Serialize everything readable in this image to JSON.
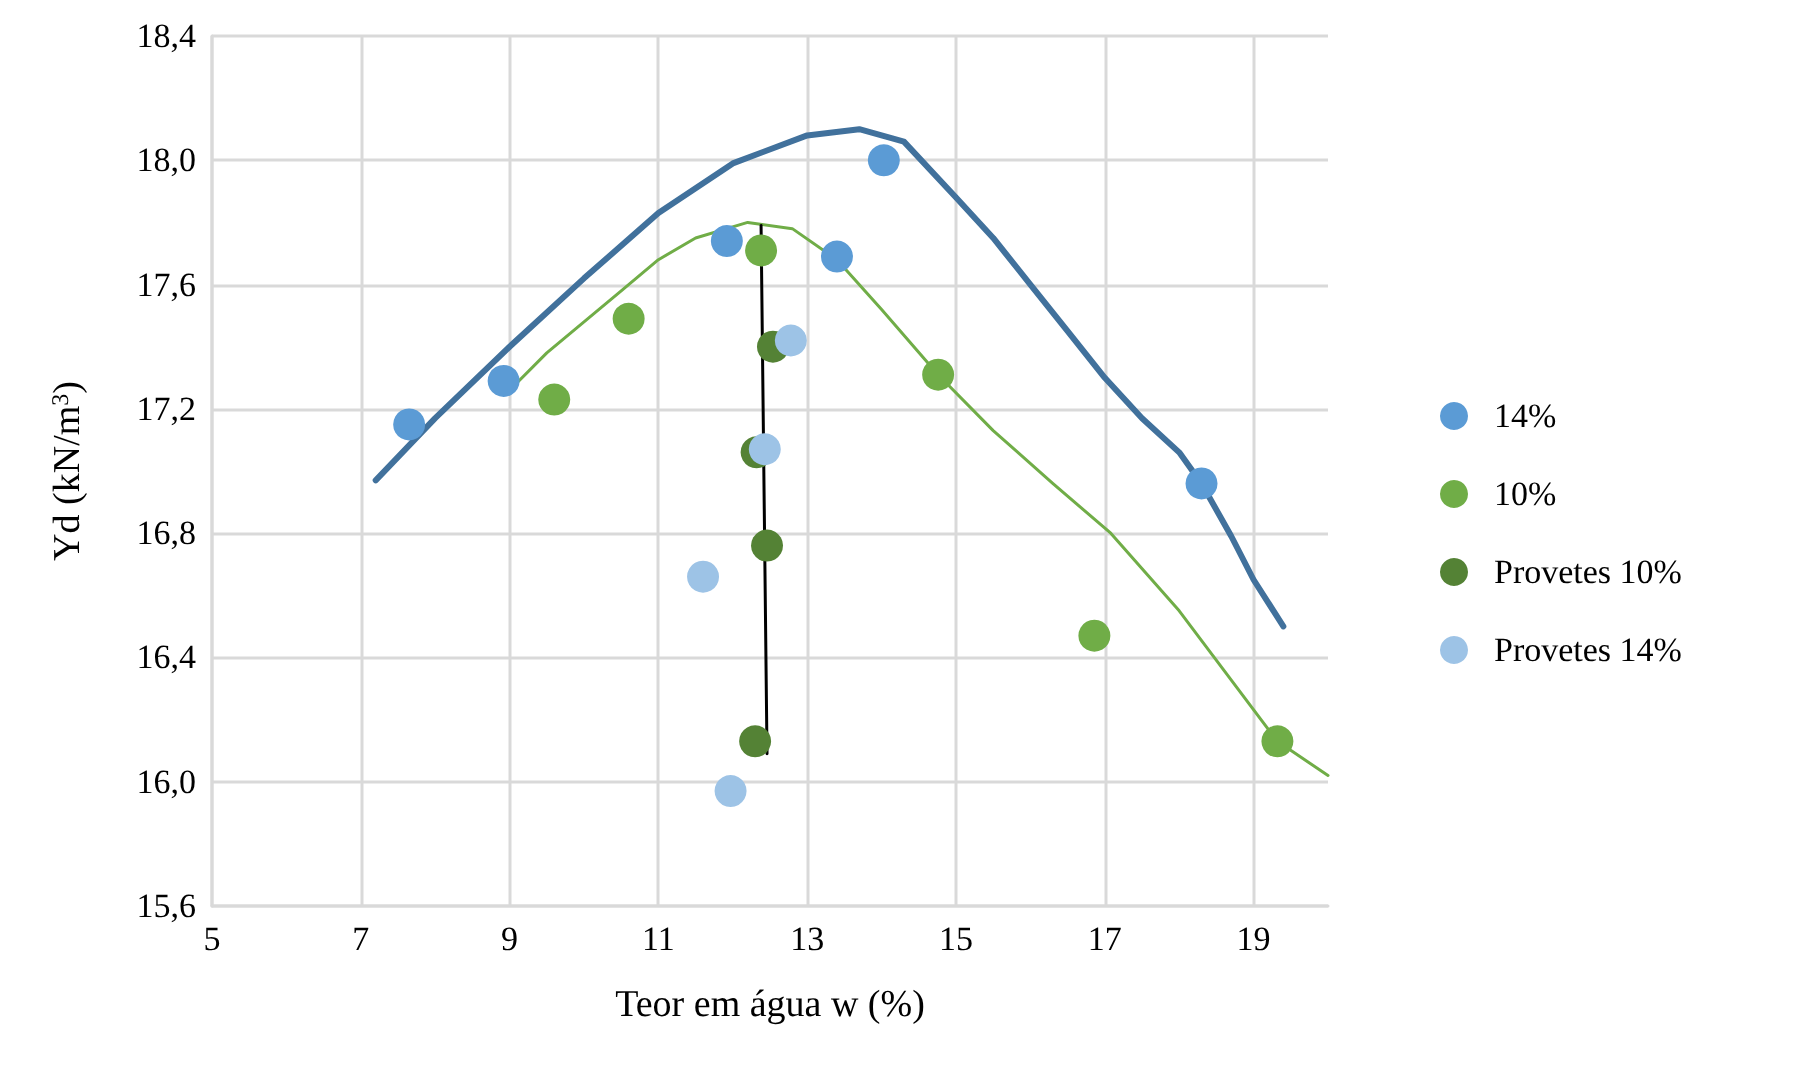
{
  "chart_data": {
    "type": "scatter",
    "xlabel": "Teor em água w (%)",
    "ylabel": "Yd (kN/m$^{3}$)",
    "xlim": [
      5,
      20
    ],
    "xticks": [
      5,
      7,
      9,
      11,
      13,
      15,
      17,
      19
    ],
    "ylim": [
      15.6,
      18.4
    ],
    "yticks": [
      {
        "value": 15.6,
        "label": "15,6"
      },
      {
        "value": 16.0,
        "label": "16,0"
      },
      {
        "value": 16.4,
        "label": "16,4"
      },
      {
        "value": 16.8,
        "label": "16,8"
      },
      {
        "value": 17.2,
        "label": "17,2"
      },
      {
        "value": 17.6,
        "label": "17,6"
      },
      {
        "value": 18.0,
        "label": "18,0"
      },
      {
        "value": 18.4,
        "label": "18,4"
      }
    ],
    "grid": true,
    "legend": "right",
    "marker": "circle",
    "series": [
      {
        "type": "line",
        "marker": "none",
        "color": "#41719c",
        "x": [
          7.2,
          8,
          9,
          10,
          11,
          12,
          13,
          13.7,
          14.3,
          15,
          15.5,
          16,
          16.5,
          17,
          17.5,
          18,
          18.3,
          18.7,
          19,
          19.4
        ],
        "values": [
          16.97,
          17.17,
          17.4,
          17.62,
          17.83,
          17.99,
          18.08,
          18.1,
          18.06,
          17.88,
          17.75,
          17.6,
          17.45,
          17.3,
          17.17,
          17.06,
          16.96,
          16.79,
          16.65,
          16.5
        ]
      },
      {
        "type": "line",
        "marker": "none",
        "color": "#70ad47",
        "x": [
          9,
          9.5,
          10,
          10.5,
          11,
          11.5,
          12.2,
          12.8,
          13.4,
          14,
          14.76,
          15.5,
          16.3,
          17.08,
          18,
          19.32,
          20
        ],
        "values": [
          17.26,
          17.38,
          17.48,
          17.58,
          17.68,
          17.75,
          17.8,
          17.78,
          17.68,
          17.52,
          17.31,
          17.13,
          16.96,
          16.8,
          16.55,
          16.13,
          16.02
        ]
      },
      {
        "type": "line",
        "marker": "none",
        "color": "#000000",
        "x": [
          12.38,
          12.46
        ],
        "values": [
          17.79,
          16.09
        ]
      },
      {
        "name": "14%",
        "color": "#5b9bd5",
        "x": [
          7.65,
          8.92,
          11.92,
          13.4,
          14.03,
          18.3
        ],
        "values": [
          17.15,
          17.29,
          17.74,
          17.69,
          18.0,
          16.96
        ]
      },
      {
        "name": "10%",
        "color": "#70ad47",
        "x": [
          9.6,
          10.6,
          12.38,
          14.76,
          16.86,
          19.32
        ],
        "values": [
          17.23,
          17.49,
          17.71,
          17.31,
          16.47,
          16.13
        ]
      },
      {
        "name": "Provetes 10%",
        "color": "#548235",
        "x": [
          12.54,
          12.32,
          12.46,
          12.3
        ],
        "values": [
          17.4,
          17.06,
          16.76,
          16.13
        ]
      },
      {
        "name": "Provetes 14%",
        "color": "#9dc3e6",
        "x": [
          12.78,
          12.43,
          11.6,
          11.97
        ],
        "values": [
          17.42,
          17.07,
          16.66,
          15.97
        ]
      }
    ]
  }
}
